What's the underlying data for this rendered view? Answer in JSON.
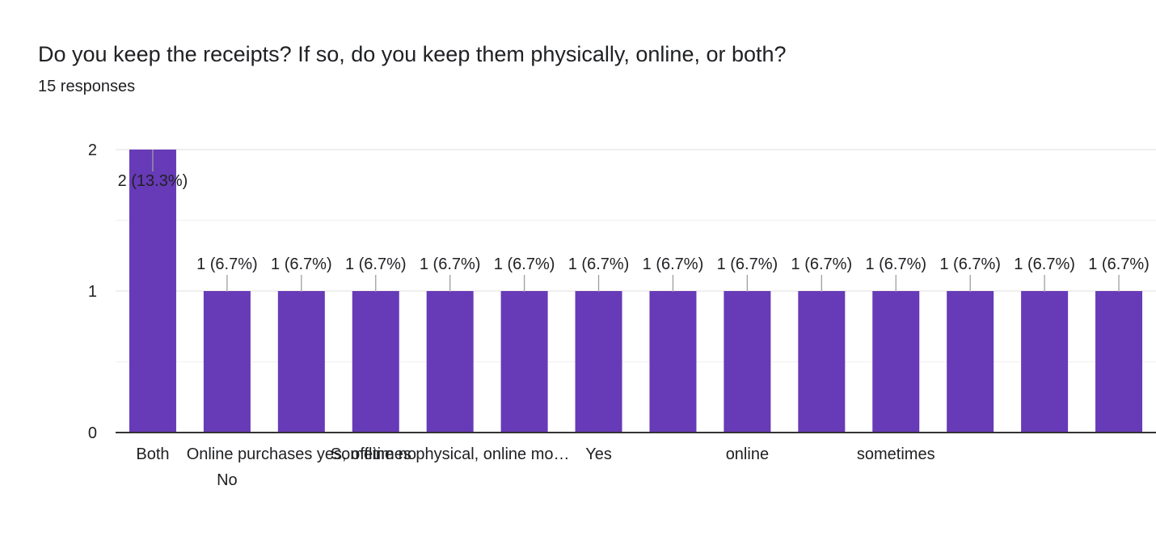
{
  "question": {
    "title": "Do you keep the receipts? If so, do you keep them physically, online, or both?",
    "responses_label": "15 responses"
  },
  "colors": {
    "bar": "#673ab7",
    "grid": "#e8e8e8",
    "axis": "#333333",
    "label_text": "#202124",
    "leader": "#9e9e9e"
  },
  "chart_data": {
    "type": "bar",
    "categories": [
      "Both",
      "No",
      "Online purchases yes, offline no",
      "",
      "Sometimes physical, online mo…",
      "",
      "Yes",
      "",
      "online",
      "",
      "sometimes",
      "",
      "",
      ""
    ],
    "values": [
      2,
      1,
      1,
      1,
      1,
      1,
      1,
      1,
      1,
      1,
      1,
      1,
      1,
      1
    ],
    "data_labels": [
      "2 (13.3%)",
      "1 (6.7%)",
      "1 (6.7%)",
      "1 (6.7%)",
      "1 (6.7%)",
      "1 (6.7%)",
      "1 (6.7%)",
      "1 (6.7%)",
      "1 (6.7%)",
      "1 (6.7%)",
      "1 (6.7%)",
      "1 (6.7%)",
      "1 (6.7%)",
      "1 (6.7%)"
    ],
    "y_ticks": [
      "0",
      "1",
      "2"
    ],
    "ylim": [
      0,
      2
    ],
    "grid": true
  }
}
